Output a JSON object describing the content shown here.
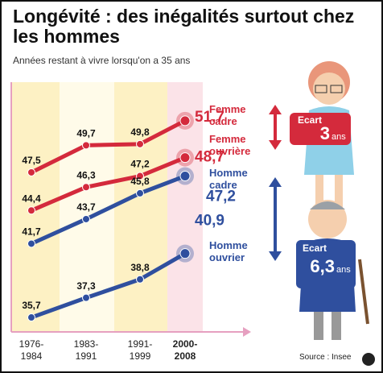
{
  "title": "Longévité : des inégalités surtout chez les hommes",
  "subtitle": "Années restant à vivre lorsqu'on a 35 ans",
  "source": "Source : Insee",
  "chart_data": {
    "type": "line",
    "categories": [
      "1976-1984",
      "1983-1991",
      "1991-1999",
      "2000-2008"
    ],
    "ylim": [
      34,
      53
    ],
    "series": [
      {
        "name": "Femme cadre",
        "color": "#d42a3c",
        "values": [
          47.5,
          49.7,
          49.8,
          51.7
        ],
        "value_labels": [
          "47,5",
          "49,7",
          "49,8",
          "51,7"
        ]
      },
      {
        "name": "Femme ouvrière",
        "color": "#d42a3c",
        "values": [
          44.4,
          46.3,
          47.2,
          48.7
        ],
        "value_labels": [
          "44,4",
          "46,3",
          "47,2",
          "48,7"
        ]
      },
      {
        "name": "Homme cadre",
        "color": "#2f4f9e",
        "values": [
          41.7,
          43.7,
          45.8,
          47.2
        ],
        "value_labels": [
          "41,7",
          "43,7",
          "45,8",
          "47,2"
        ]
      },
      {
        "name": "Homme ouvrier",
        "color": "#2f4f9e",
        "values": [
          35.7,
          37.3,
          38.8,
          40.9
        ],
        "value_labels": [
          "35,7",
          "37,3",
          "38,8",
          "40,9"
        ]
      }
    ],
    "annotations": [
      {
        "label": "Ecart",
        "value": "3",
        "unit": "ans"
      },
      {
        "label": "Ecart",
        "value": "6,3",
        "unit": "ans"
      }
    ]
  }
}
